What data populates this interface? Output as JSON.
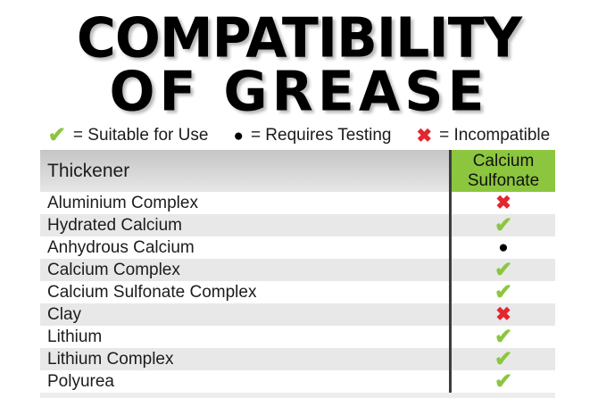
{
  "title": {
    "line1": "COMPATIBILITY",
    "line2": "OF GREASE"
  },
  "legend": {
    "items": [
      {
        "glyph": "✔",
        "status": "suitable",
        "label": "= Suitable for Use"
      },
      {
        "glyph": "●",
        "status": "requires-testing",
        "label": "= Requires Testing"
      },
      {
        "glyph": "✖",
        "status": "incompatible",
        "label": "= Incompatible"
      }
    ]
  },
  "table": {
    "header": {
      "thickener": "Thickener",
      "column": "Calcium Sulfonate"
    },
    "rows": [
      {
        "thickener": "Aluminium Complex",
        "glyph": "✖",
        "status": "incompatible"
      },
      {
        "thickener": "Hydrated Calcium",
        "glyph": "✔",
        "status": "suitable"
      },
      {
        "thickener": "Anhydrous Calcium",
        "glyph": "●",
        "status": "requires-testing"
      },
      {
        "thickener": "Calcium Complex",
        "glyph": "✔",
        "status": "suitable"
      },
      {
        "thickener": "Calcium Sulfonate Complex",
        "glyph": "✔",
        "status": "suitable"
      },
      {
        "thickener": "Clay",
        "glyph": "✖",
        "status": "incompatible"
      },
      {
        "thickener": "Lithium",
        "glyph": "✔",
        "status": "suitable"
      },
      {
        "thickener": "Lithium Complex",
        "glyph": "✔",
        "status": "suitable"
      },
      {
        "thickener": "Polyurea",
        "glyph": "✔",
        "status": "suitable"
      }
    ]
  },
  "colors": {
    "suitable_green": "#8cc63f",
    "incompatible_red": "#e32630",
    "requires_testing_black": "#000000",
    "stripe_gray": "#e8e8e8",
    "header_green": "#8cc63f"
  },
  "chart_data": {
    "type": "table",
    "title": "COMPATIBILITY OF GREASE",
    "legend": {
      "✔": "Suitable for Use",
      "●": "Requires Testing",
      "✖": "Incompatible"
    },
    "columns": [
      "Thickener",
      "Calcium Sulfonate"
    ],
    "rows": [
      [
        "Aluminium Complex",
        "Incompatible"
      ],
      [
        "Hydrated Calcium",
        "Suitable for Use"
      ],
      [
        "Anhydrous Calcium",
        "Requires Testing"
      ],
      [
        "Calcium Complex",
        "Suitable for Use"
      ],
      [
        "Calcium Sulfonate Complex",
        "Suitable for Use"
      ],
      [
        "Clay",
        "Incompatible"
      ],
      [
        "Lithium",
        "Suitable for Use"
      ],
      [
        "Lithium Complex",
        "Suitable for Use"
      ],
      [
        "Polyurea",
        "Suitable for Use"
      ]
    ]
  }
}
